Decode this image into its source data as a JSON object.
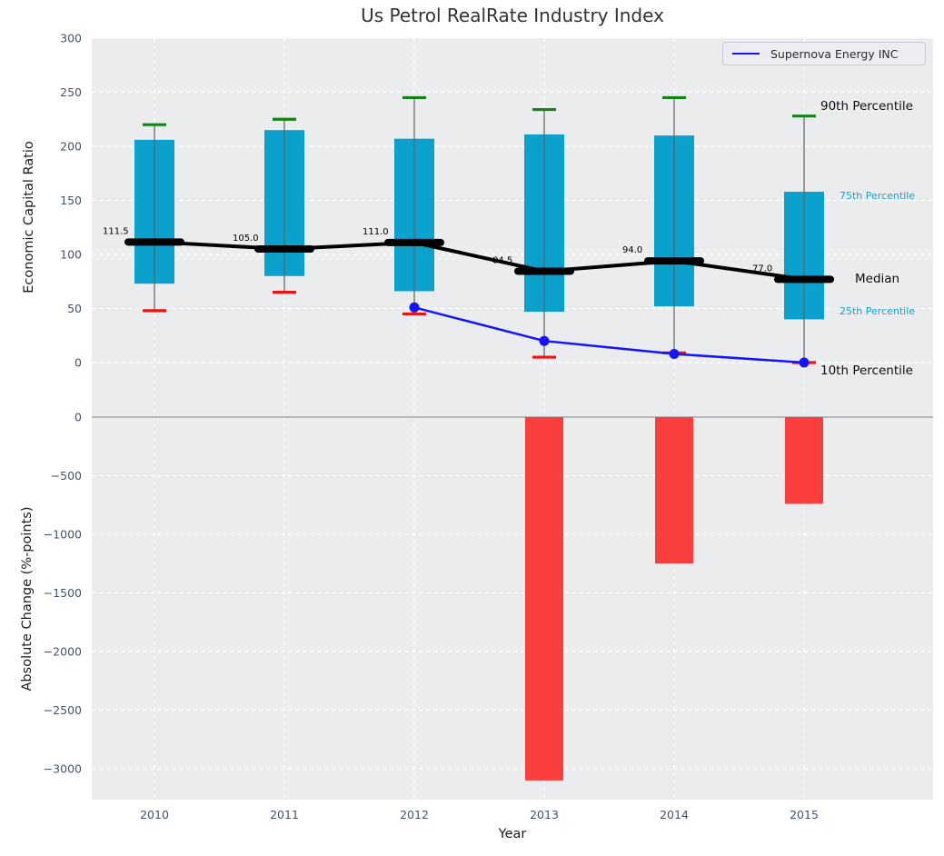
{
  "title": "Us Petrol RealRate Industry Index",
  "legend": {
    "label": "Supernova Energy INC"
  },
  "right_labels": {
    "p90": "90th Percentile",
    "p75": "75th Percentile",
    "median": "Median",
    "p25": "25th Percentile",
    "p10": "10th Percentile"
  },
  "colors": {
    "bar_cyan": "#0aa1cd",
    "bar_red": "#fa3d3d",
    "cap_green": "#148214",
    "cap_red": "#f01111",
    "median_black": "#000000",
    "supernova_blue": "#1414ff",
    "whisker_gray": "#606060",
    "plot_bg": "#eaeced",
    "grid_white": "#ffffff",
    "tick_text": "#44536b",
    "zero_line": "#a6a6a6",
    "annotation_cyan": "#17a3cc",
    "median_label_text": "#000000"
  },
  "chart_data": [
    {
      "type": "percentile-band-line",
      "title": "Us Petrol RealRate Industry Index",
      "xlabel": "Year",
      "ylabel": "Economic Capital Ratio",
      "categories": [
        "2010",
        "2011",
        "2012",
        "2013",
        "2014",
        "2015"
      ],
      "yticks": [
        300,
        250,
        200,
        150,
        100,
        50,
        0
      ],
      "ylim": [
        -35,
        300
      ],
      "grid": true,
      "legend_position": "upper right",
      "series": [
        {
          "name": "90th Percentile",
          "role": "whisker-top-green",
          "values": [
            220,
            225,
            245,
            234,
            245,
            228
          ]
        },
        {
          "name": "75th Percentile",
          "role": "band-top",
          "values": [
            206,
            215,
            207,
            211,
            210,
            158
          ]
        },
        {
          "name": "Median",
          "role": "median-line",
          "values": [
            111.5,
            105.0,
            111.0,
            84.5,
            94.0,
            77.0
          ]
        },
        {
          "name": "25th Percentile",
          "role": "band-bottom",
          "values": [
            73,
            80,
            66,
            47,
            52,
            40
          ]
        },
        {
          "name": "10th Percentile",
          "role": "whisker-bottom-red",
          "values": [
            48,
            65,
            45,
            5,
            9,
            0
          ]
        },
        {
          "name": "Supernova Energy INC",
          "role": "line-with-markers",
          "values": [
            null,
            null,
            51,
            20,
            8,
            0
          ]
        }
      ],
      "median_labels": [
        "111.5",
        "105.0",
        "111.0",
        "84.5",
        "94.0",
        "77.0"
      ]
    },
    {
      "type": "bar",
      "xlabel": "Year",
      "ylabel": "Absolute Change (%-points)",
      "categories": [
        "2010",
        "2011",
        "2012",
        "2013",
        "2014",
        "2015"
      ],
      "values": [
        null,
        null,
        null,
        -3100,
        -1250,
        -740
      ],
      "yticks": [
        0,
        -500,
        -1000,
        -1500,
        -2000,
        -2500,
        -3000
      ],
      "ylim": [
        -3270,
        147
      ],
      "grid": true
    }
  ]
}
